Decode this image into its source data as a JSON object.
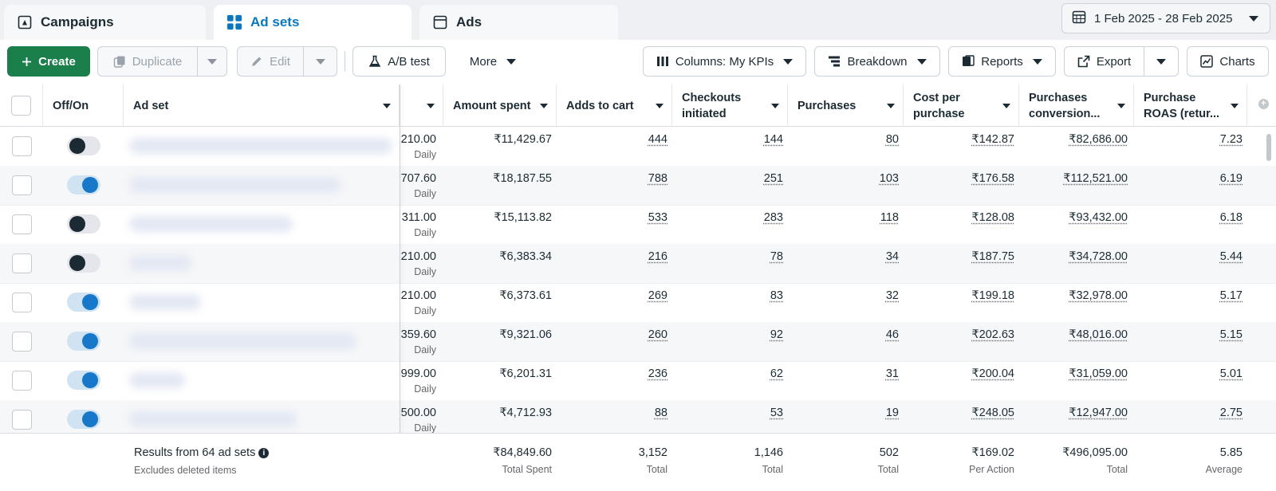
{
  "tabs": [
    {
      "label": "Campaigns",
      "icon": "campaign-flag-icon"
    },
    {
      "label": "Ad sets",
      "icon": "grid-icon"
    },
    {
      "label": "Ads",
      "icon": "ad-window-icon"
    }
  ],
  "date_range": {
    "label": "1 Feb 2025 - 28 Feb 2025",
    "icon": "calendar-icon"
  },
  "toolbar": {
    "create_label": "Create",
    "duplicate_label": "Duplicate",
    "edit_label": "Edit",
    "ab_test_label": "A/B test",
    "more_label": "More",
    "columns_label": "Columns: My KPIs",
    "breakdown_label": "Breakdown",
    "reports_label": "Reports",
    "export_label": "Export",
    "charts_label": "Charts"
  },
  "table": {
    "headers": {
      "off_on": "Off/On",
      "ad_set": "Ad set",
      "amount_spent": "Amount spent",
      "adds_to_cart": "Adds to cart",
      "checkouts": "Checkouts initiated",
      "purchases": "Purchases",
      "cost_per_purchase": "Cost per purchase",
      "purchases_conversion": "Purchases conversion...",
      "purchase_roas": "Purchase ROAS (retur..."
    },
    "rows": [
      {
        "on": false,
        "budget": "210.00",
        "budget_type": "Daily",
        "amount_spent": "₹11,429.67",
        "adds_to_cart": "444",
        "checkouts": "144",
        "purchases": "80",
        "cost_per_purchase": "₹142.87",
        "conversion_value": "₹82,686.00",
        "roas": "7.23"
      },
      {
        "on": true,
        "budget": "707.60",
        "budget_type": "Daily",
        "amount_spent": "₹18,187.55",
        "adds_to_cart": "788",
        "checkouts": "251",
        "purchases": "103",
        "cost_per_purchase": "₹176.58",
        "conversion_value": "₹112,521.00",
        "roas": "6.19"
      },
      {
        "on": false,
        "budget": "311.00",
        "budget_type": "Daily",
        "amount_spent": "₹15,113.82",
        "adds_to_cart": "533",
        "checkouts": "283",
        "purchases": "118",
        "cost_per_purchase": "₹128.08",
        "conversion_value": "₹93,432.00",
        "roas": "6.18"
      },
      {
        "on": false,
        "budget": "210.00",
        "budget_type": "Daily",
        "amount_spent": "₹6,383.34",
        "adds_to_cart": "216",
        "checkouts": "78",
        "purchases": "34",
        "cost_per_purchase": "₹187.75",
        "conversion_value": "₹34,728.00",
        "roas": "5.44"
      },
      {
        "on": true,
        "budget": "210.00",
        "budget_type": "Daily",
        "amount_spent": "₹6,373.61",
        "adds_to_cart": "269",
        "checkouts": "83",
        "purchases": "32",
        "cost_per_purchase": "₹199.18",
        "conversion_value": "₹32,978.00",
        "roas": "5.17"
      },
      {
        "on": true,
        "budget": "359.60",
        "budget_type": "Daily",
        "amount_spent": "₹9,321.06",
        "adds_to_cart": "260",
        "checkouts": "92",
        "purchases": "46",
        "cost_per_purchase": "₹202.63",
        "conversion_value": "₹48,016.00",
        "roas": "5.15"
      },
      {
        "on": true,
        "budget": "999.00",
        "budget_type": "Daily",
        "amount_spent": "₹6,201.31",
        "adds_to_cart": "236",
        "checkouts": "62",
        "purchases": "31",
        "cost_per_purchase": "₹200.04",
        "conversion_value": "₹31,059.00",
        "roas": "5.01"
      },
      {
        "on": true,
        "budget": "500.00",
        "budget_type": "Daily",
        "amount_spent": "₹4,712.93",
        "adds_to_cart": "88",
        "checkouts": "53",
        "purchases": "19",
        "cost_per_purchase": "₹248.05",
        "conversion_value": "₹12,947.00",
        "roas": "2.75"
      }
    ],
    "totals": {
      "results_label": "Results from 64 ad sets",
      "excludes_label": "Excludes deleted items",
      "amount_spent": "₹84,849.60",
      "amount_spent_sub": "Total Spent",
      "adds_to_cart": "3,152",
      "adds_to_cart_sub": "Total",
      "checkouts": "1,146",
      "checkouts_sub": "Total",
      "purchases": "502",
      "purchases_sub": "Total",
      "cost_per_purchase": "₹169.02",
      "cost_per_purchase_sub": "Per Action",
      "conversion_value": "₹496,095.00",
      "conversion_value_sub": "Total",
      "roas": "5.85",
      "roas_sub": "Average"
    }
  },
  "colors": {
    "create_green": "#1a7f4b",
    "active_tab_blue": "#0a78be",
    "toggle_on_blue": "#1777c8"
  }
}
